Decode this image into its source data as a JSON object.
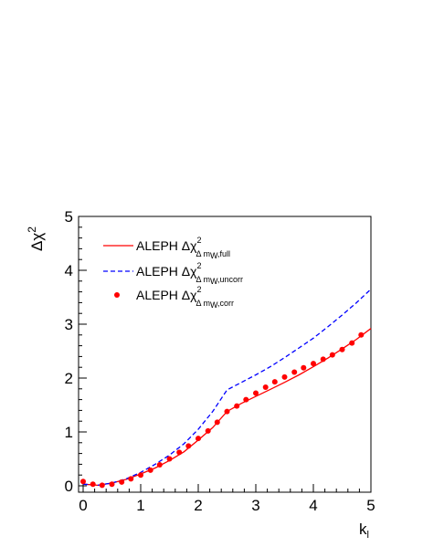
{
  "chart_data": {
    "type": "line",
    "xlim": [
      0,
      5
    ],
    "ylim": [
      0,
      5
    ],
    "x_ticks": [
      "0",
      "1",
      "2",
      "3",
      "4",
      "5"
    ],
    "y_ticks": [
      "0",
      "1",
      "2",
      "3",
      "4",
      "5"
    ],
    "xlabel_main": "k",
    "xlabel_sub": "l",
    "ylabel_main": "Δχ",
    "ylabel_sup": "2",
    "grid": false,
    "legend_position": "top-left",
    "series": [
      {
        "key": "full",
        "style": "solid",
        "color": "#ff0000",
        "legend": {
          "main": "ALEPH Δχ",
          "sup": "2",
          "sub1": "Δ m",
          "sub2": "W",
          "sub3": ",full"
        },
        "x": [
          0,
          0.25,
          0.5,
          0.75,
          1.0,
          1.25,
          1.5,
          1.75,
          2.0,
          2.25,
          2.5,
          2.75,
          3.0,
          3.25,
          3.5,
          3.75,
          4.0,
          4.25,
          4.5,
          4.75,
          5.0
        ],
        "y": [
          0.03,
          0.01,
          0.05,
          0.12,
          0.22,
          0.33,
          0.47,
          0.63,
          0.85,
          1.08,
          1.38,
          1.53,
          1.66,
          1.79,
          1.92,
          2.06,
          2.21,
          2.37,
          2.54,
          2.72,
          2.92
        ]
      },
      {
        "key": "uncorr",
        "style": "dashed",
        "color": "#0000ff",
        "legend": {
          "main": "ALEPH Δχ",
          "sup": "2",
          "sub1": "Δ m",
          "sub2": "W",
          "sub3": ",uncorr"
        },
        "x": [
          0,
          0.25,
          0.5,
          0.75,
          1.0,
          1.25,
          1.5,
          1.75,
          2.0,
          2.25,
          2.5,
          2.75,
          3.0,
          3.25,
          3.5,
          3.75,
          4.0,
          4.25,
          4.5,
          4.75,
          5.0
        ],
        "y": [
          0.03,
          0.01,
          0.05,
          0.13,
          0.25,
          0.4,
          0.57,
          0.78,
          1.05,
          1.38,
          1.78,
          1.92,
          2.06,
          2.21,
          2.38,
          2.56,
          2.74,
          2.95,
          3.17,
          3.4,
          3.65
        ]
      },
      {
        "key": "corr",
        "style": "markers",
        "color": "#ff0000",
        "legend": {
          "main": "ALEPH Δχ",
          "sup": "2",
          "sub1": "Δ m",
          "sub2": "W",
          "sub3": ",corr"
        },
        "x": [
          0,
          0.17,
          0.33,
          0.5,
          0.67,
          0.83,
          1.0,
          1.17,
          1.33,
          1.5,
          1.67,
          1.83,
          2.0,
          2.17,
          2.33,
          2.5,
          2.67,
          2.83,
          3.0,
          3.17,
          3.33,
          3.5,
          3.67,
          3.83,
          4.0,
          4.17,
          4.33,
          4.5,
          4.67,
          4.83
        ],
        "y": [
          0.08,
          0.03,
          0.01,
          0.03,
          0.07,
          0.13,
          0.2,
          0.29,
          0.39,
          0.5,
          0.62,
          0.74,
          0.88,
          1.02,
          1.18,
          1.38,
          1.48,
          1.6,
          1.72,
          1.83,
          1.93,
          2.02,
          2.11,
          2.19,
          2.27,
          2.35,
          2.43,
          2.53,
          2.65,
          2.8
        ]
      }
    ]
  }
}
